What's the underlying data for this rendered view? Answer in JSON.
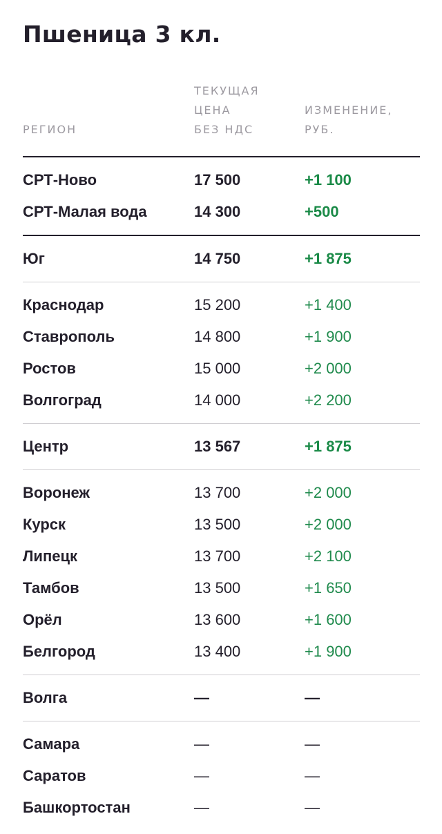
{
  "title": "Пшеница 3 кл.",
  "columns": {
    "region": "РЕГИОН",
    "price_line1": "ТЕКУЩАЯ",
    "price_line2": "ЦЕНА",
    "price_line3": "БЕЗ НДС",
    "change_line1": "ИЗМЕНЕНИЕ,",
    "change_line2": "РУБ."
  },
  "colors": {
    "text": "#231f2b",
    "header": "#9d9aa1",
    "positive": "#1f8a4c",
    "divider": "#cfcdd1"
  },
  "groups": [
    {
      "rows": [
        {
          "name": "СРТ-Ново",
          "price": "17 500",
          "change": "+1 100"
        },
        {
          "name": "СРТ-Малая вода",
          "price": "14 300",
          "change": "+500"
        }
      ]
    },
    {
      "rows": [
        {
          "name": "Юг",
          "price": "14 750",
          "change": "+1 875"
        }
      ]
    },
    {
      "rows": [
        {
          "name": "Краснодар",
          "price": "15 200",
          "change": "+1 400"
        },
        {
          "name": "Ставрополь",
          "price": "14 800",
          "change": "+1 900"
        },
        {
          "name": "Ростов",
          "price": "15 000",
          "change": "+2 000"
        },
        {
          "name": "Волгоград",
          "price": "14 000",
          "change": "+2 200"
        }
      ]
    },
    {
      "rows": [
        {
          "name": "Центр",
          "price": "13 567",
          "change": "+1 875"
        }
      ]
    },
    {
      "rows": [
        {
          "name": "Воронеж",
          "price": "13 700",
          "change": "+2 000"
        },
        {
          "name": "Курск",
          "price": "13 500",
          "change": "+2 000"
        },
        {
          "name": "Липецк",
          "price": "13 700",
          "change": "+2 100"
        },
        {
          "name": "Тамбов",
          "price": "13 500",
          "change": "+1 650"
        },
        {
          "name": "Орёл",
          "price": "13 600",
          "change": "+1 600"
        },
        {
          "name": "Белгород",
          "price": "13 400",
          "change": "+1 900"
        }
      ]
    },
    {
      "rows": [
        {
          "name": "Волга",
          "price": "—",
          "change": "—"
        }
      ]
    },
    {
      "rows": [
        {
          "name": "Самара",
          "price": "—",
          "change": "—"
        },
        {
          "name": "Саратов",
          "price": "—",
          "change": "—"
        },
        {
          "name": "Башкортостан",
          "price": "—",
          "change": "—"
        }
      ]
    }
  ]
}
